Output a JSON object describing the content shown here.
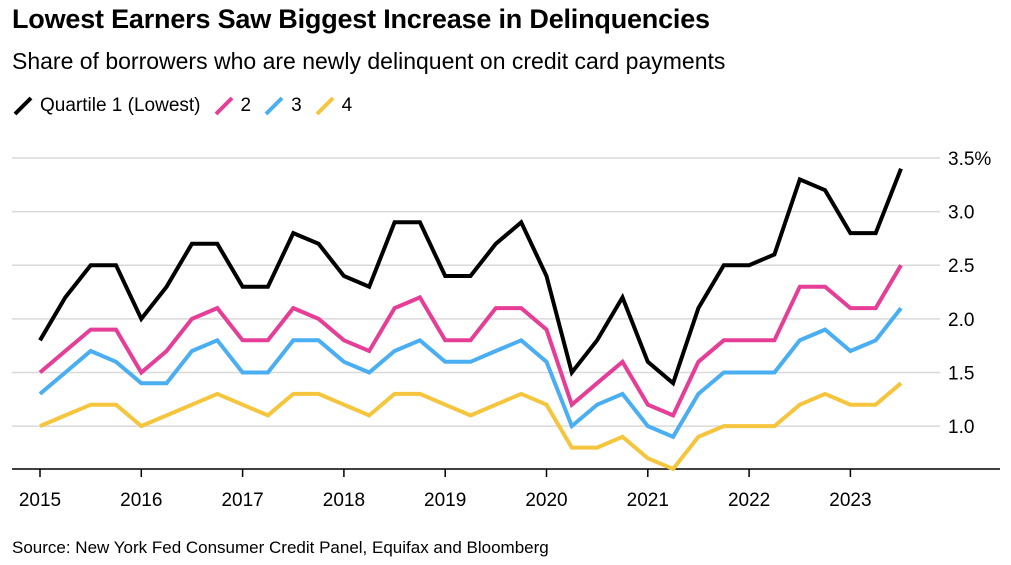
{
  "chart_data": {
    "type": "line",
    "title": "Lowest Earners Saw Biggest Increase in Delinquencies",
    "subtitle": "Share of borrowers who are newly delinquent on credit card payments",
    "source": "Source: New York Fed Consumer Credit Panel, Equifax and Bloomberg",
    "x_start": 2015.0,
    "x_step": 0.25,
    "xlim": [
      2015,
      2024.2
    ],
    "ylim": [
      0.6,
      3.5
    ],
    "x_ticks": [
      2015,
      2016,
      2017,
      2018,
      2019,
      2020,
      2021,
      2022,
      2023
    ],
    "x_tick_labels": [
      "2015",
      "2016",
      "2017",
      "2018",
      "2019",
      "2020",
      "2021",
      "2022",
      "2023"
    ],
    "y_ticks": [
      1.0,
      1.5,
      2.0,
      2.5,
      3.0,
      3.5
    ],
    "y_tick_labels": [
      "1.0",
      "1.5",
      "2.0",
      "2.5",
      "3.0",
      "3.5%"
    ],
    "grid": true,
    "legend_position": "top-left",
    "series": [
      {
        "name": "Quartile 1 (Lowest)",
        "color": "#000000",
        "values": [
          1.8,
          2.2,
          2.5,
          2.5,
          2.0,
          2.3,
          2.7,
          2.7,
          2.3,
          2.3,
          2.8,
          2.7,
          2.4,
          2.3,
          2.9,
          2.9,
          2.4,
          2.4,
          2.7,
          2.9,
          2.4,
          1.5,
          1.8,
          2.2,
          1.6,
          1.4,
          2.1,
          2.5,
          2.5,
          2.6,
          3.3,
          3.2,
          2.8,
          2.8,
          3.4
        ]
      },
      {
        "name": "2",
        "color": "#e63e97",
        "values": [
          1.5,
          1.7,
          1.9,
          1.9,
          1.5,
          1.7,
          2.0,
          2.1,
          1.8,
          1.8,
          2.1,
          2.0,
          1.8,
          1.7,
          2.1,
          2.2,
          1.8,
          1.8,
          2.1,
          2.1,
          1.9,
          1.2,
          1.4,
          1.6,
          1.2,
          1.1,
          1.6,
          1.8,
          1.8,
          1.8,
          2.3,
          2.3,
          2.1,
          2.1,
          2.5
        ]
      },
      {
        "name": "3",
        "color": "#4aaef2",
        "values": [
          1.3,
          1.5,
          1.7,
          1.6,
          1.4,
          1.4,
          1.7,
          1.8,
          1.5,
          1.5,
          1.8,
          1.8,
          1.6,
          1.5,
          1.7,
          1.8,
          1.6,
          1.6,
          1.7,
          1.8,
          1.6,
          1.0,
          1.2,
          1.3,
          1.0,
          0.9,
          1.3,
          1.5,
          1.5,
          1.5,
          1.8,
          1.9,
          1.7,
          1.8,
          2.1
        ]
      },
      {
        "name": "4",
        "color": "#f5c53d",
        "values": [
          1.0,
          1.1,
          1.2,
          1.2,
          1.0,
          1.1,
          1.2,
          1.3,
          1.2,
          1.1,
          1.3,
          1.3,
          1.2,
          1.1,
          1.3,
          1.3,
          1.2,
          1.1,
          1.2,
          1.3,
          1.2,
          0.8,
          0.8,
          0.9,
          0.7,
          0.6,
          0.9,
          1.0,
          1.0,
          1.0,
          1.2,
          1.3,
          1.2,
          1.2,
          1.4
        ]
      }
    ]
  }
}
